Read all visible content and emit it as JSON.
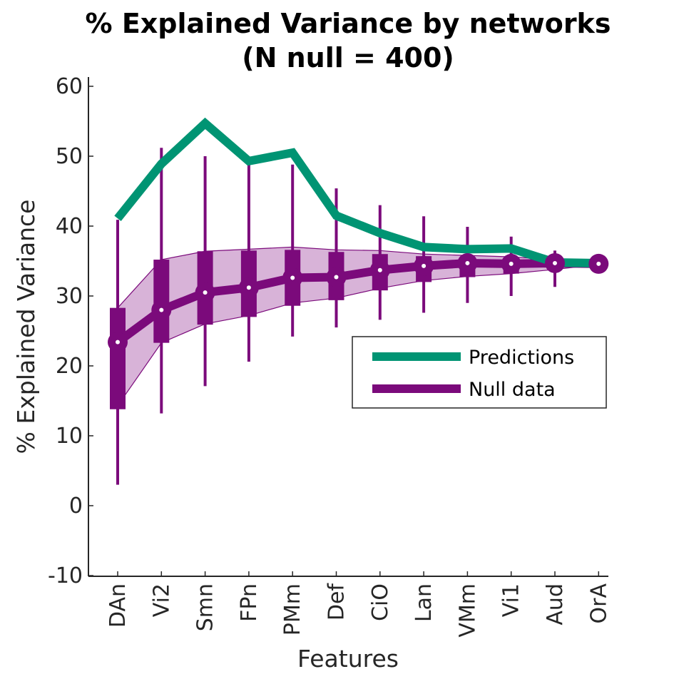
{
  "chart_data": {
    "type": "line",
    "title": "% Explained Variance by networks",
    "subtitle": "(N null = 400)",
    "xlabel": "Features",
    "ylabel": "% Explained Variance",
    "categories": [
      "DAn",
      "Vi2",
      "Smn",
      "FPn",
      "PMm",
      "Def",
      "CiO",
      "Lan",
      "VMm",
      "Vi1",
      "Aud",
      "OrA"
    ],
    "ylim": [
      -10,
      61
    ],
    "yticks": [
      -10,
      0,
      10,
      20,
      30,
      40,
      50,
      60
    ],
    "ytick_labels": [
      "-10",
      "0",
      "10",
      "20",
      "30",
      "40",
      "50",
      "60"
    ],
    "grid": false,
    "legend_position": "center-right",
    "series": [
      {
        "name": "Predictions",
        "color": "#009473",
        "values": [
          41.1,
          48.9,
          54.7,
          49.3,
          50.5,
          41.5,
          39.0,
          37.0,
          36.7,
          36.8,
          34.8,
          34.7
        ]
      },
      {
        "name": "Null data",
        "color": "#7b0a7b",
        "values": [
          23.4,
          28.0,
          30.5,
          31.2,
          32.6,
          32.7,
          33.7,
          34.3,
          34.7,
          34.6,
          34.7,
          34.6
        ],
        "band_upper": [
          28.3,
          35.2,
          36.4,
          36.7,
          37.0,
          36.6,
          36.5,
          36.0,
          35.8,
          35.6,
          35.2,
          34.8
        ],
        "band_lower": [
          14.3,
          23.3,
          26.0,
          27.2,
          29.0,
          29.7,
          31.1,
          32.2,
          32.8,
          33.2,
          33.8,
          34.5
        ],
        "box_upper": [
          28.3,
          35.2,
          36.4,
          36.5,
          36.6,
          36.3,
          36.0,
          35.7,
          35.5,
          35.3,
          35.2,
          34.7
        ],
        "box_lower": [
          13.8,
          23.3,
          25.9,
          27.0,
          28.6,
          29.4,
          30.8,
          32.0,
          32.7,
          33.2,
          33.8,
          34.5
        ],
        "whisker_upper": [
          40.9,
          51.2,
          50.0,
          49.0,
          48.8,
          45.4,
          43.0,
          41.4,
          39.9,
          38.5,
          36.5,
          35.0
        ],
        "whisker_lower": [
          3.0,
          13.2,
          17.1,
          20.6,
          24.2,
          25.5,
          26.6,
          27.6,
          29.0,
          30.0,
          31.3,
          34.2
        ]
      }
    ],
    "band_color": "#d8b3d8"
  }
}
